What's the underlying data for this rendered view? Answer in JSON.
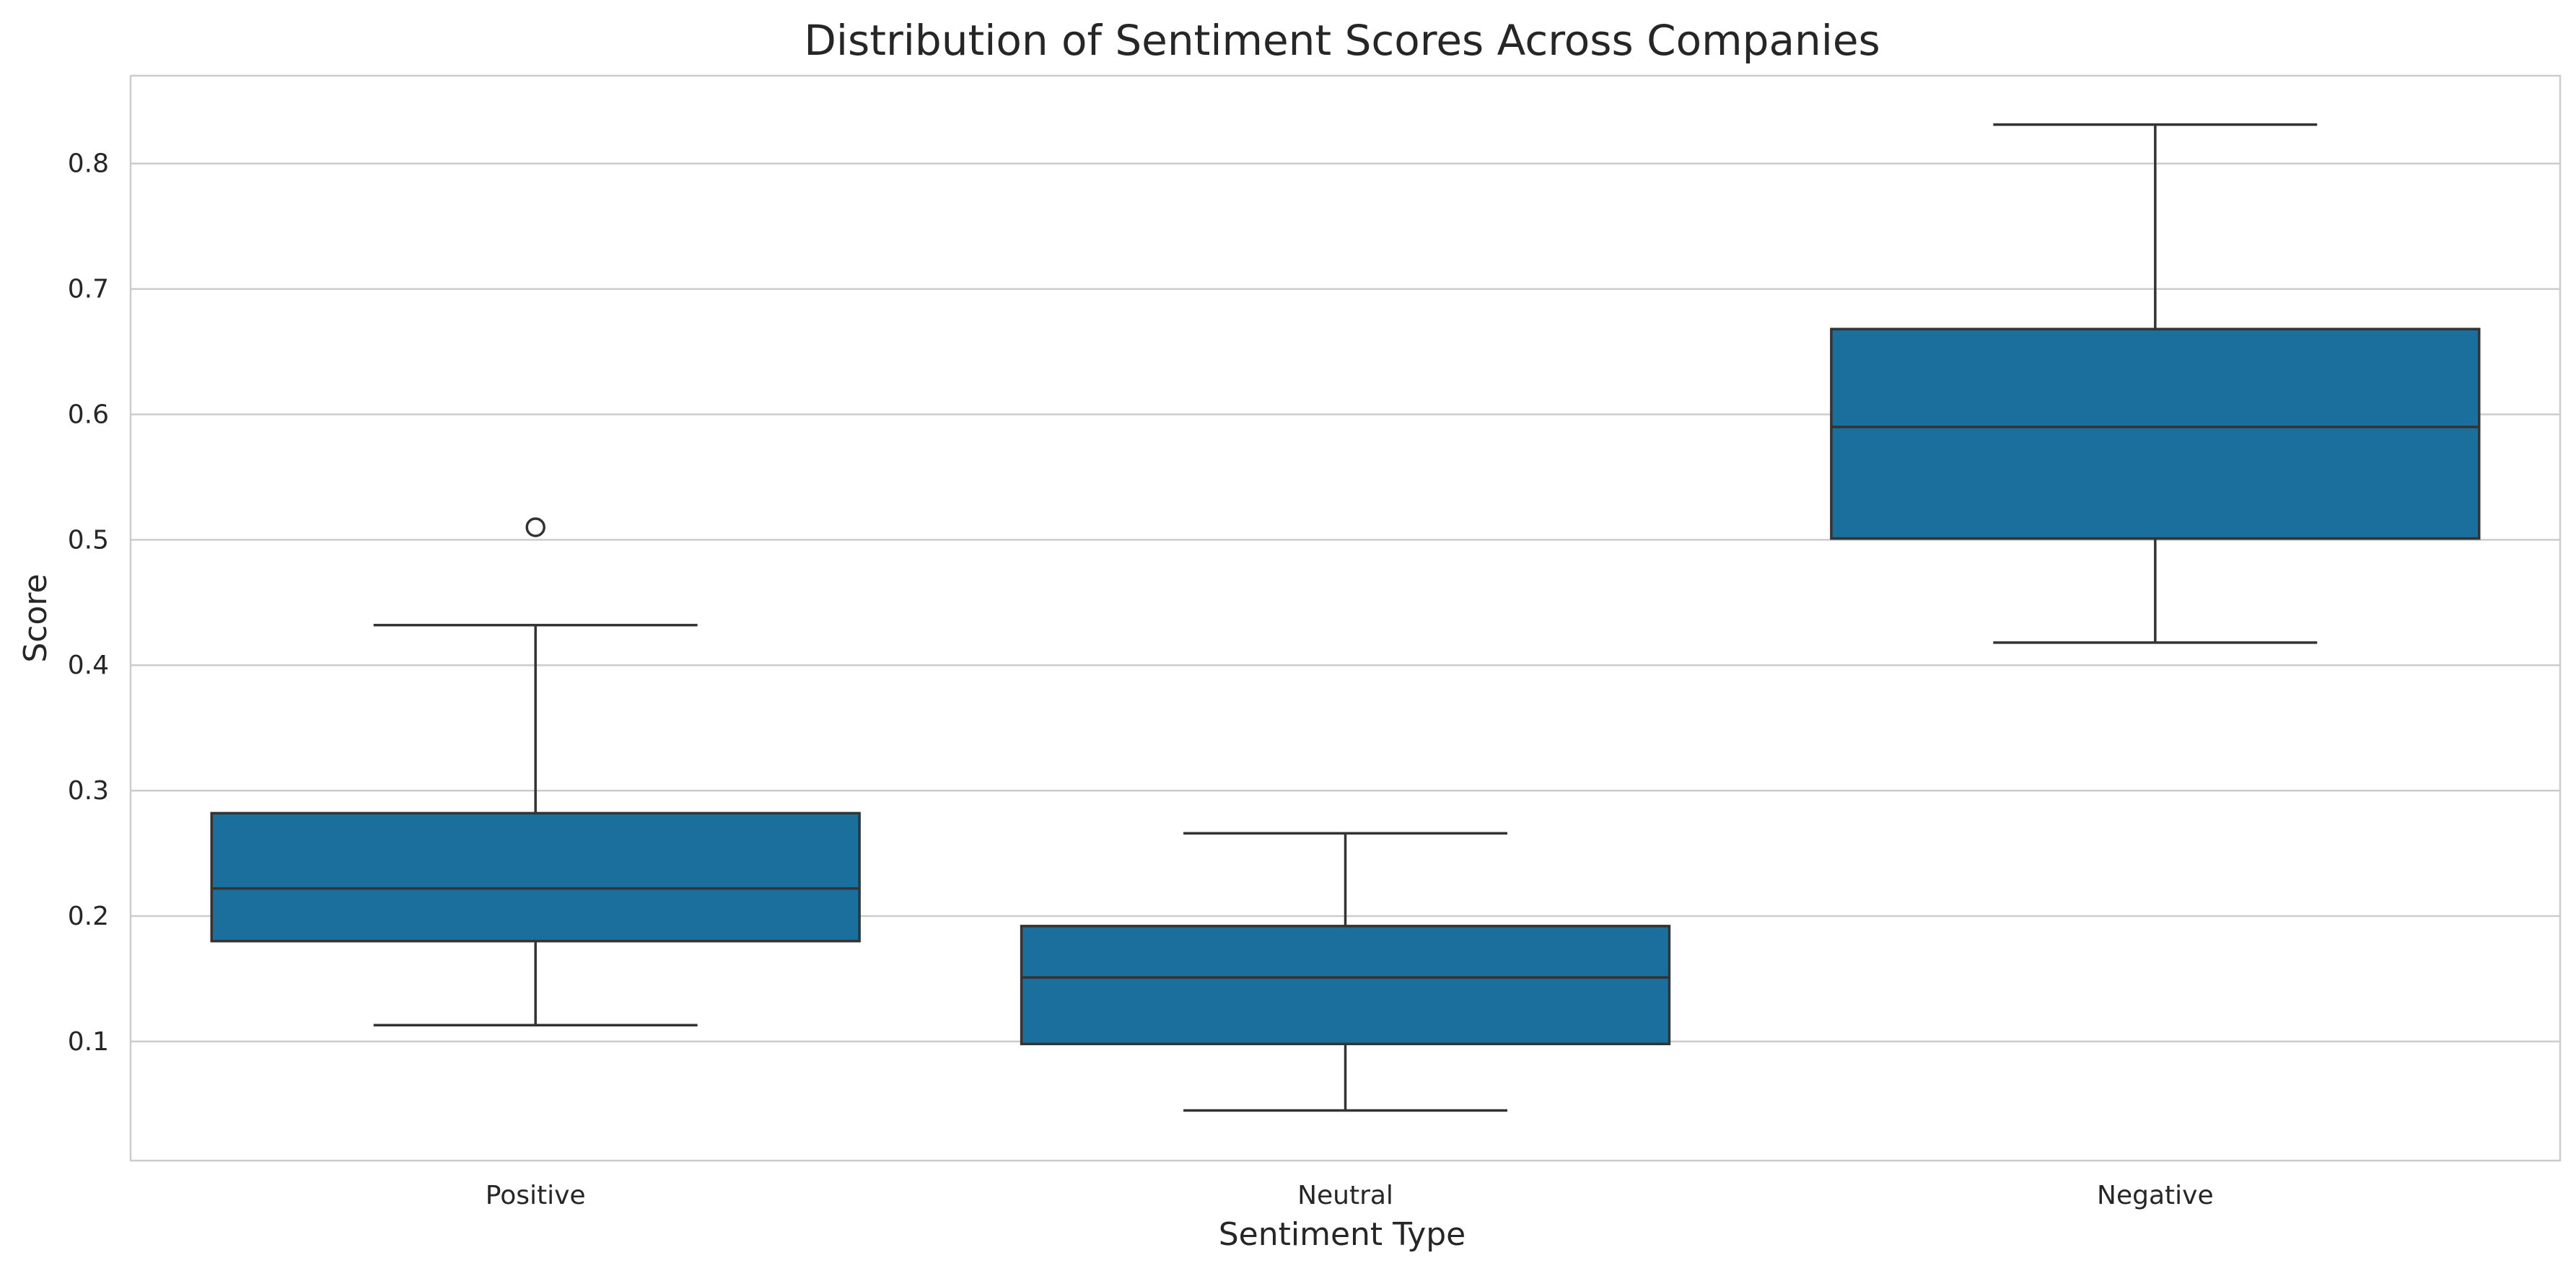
{
  "chart_data": {
    "type": "box",
    "title": "Distribution of Sentiment Scores Across Companies",
    "xlabel": "Sentiment Type",
    "ylabel": "Score",
    "categories": [
      "Positive",
      "Neutral",
      "Negative"
    ],
    "ylim": [
      0.005,
      0.87
    ],
    "yticks": [
      0.1,
      0.2,
      0.3,
      0.4,
      0.5,
      0.6,
      0.7,
      0.8
    ],
    "grid": true,
    "box_color": "#1a6f9c",
    "line_color": "#333333",
    "grid_color": "#cccccc",
    "boxes": [
      {
        "category": "Positive",
        "whislo": 0.113,
        "q1": 0.18,
        "median": 0.222,
        "q3": 0.282,
        "whishi": 0.432,
        "fliers": [
          0.51
        ]
      },
      {
        "category": "Neutral",
        "whislo": 0.045,
        "q1": 0.098,
        "median": 0.151,
        "q3": 0.192,
        "whishi": 0.266,
        "fliers": []
      },
      {
        "category": "Negative",
        "whislo": 0.418,
        "q1": 0.501,
        "median": 0.59,
        "q3": 0.668,
        "whishi": 0.831,
        "fliers": []
      }
    ]
  }
}
